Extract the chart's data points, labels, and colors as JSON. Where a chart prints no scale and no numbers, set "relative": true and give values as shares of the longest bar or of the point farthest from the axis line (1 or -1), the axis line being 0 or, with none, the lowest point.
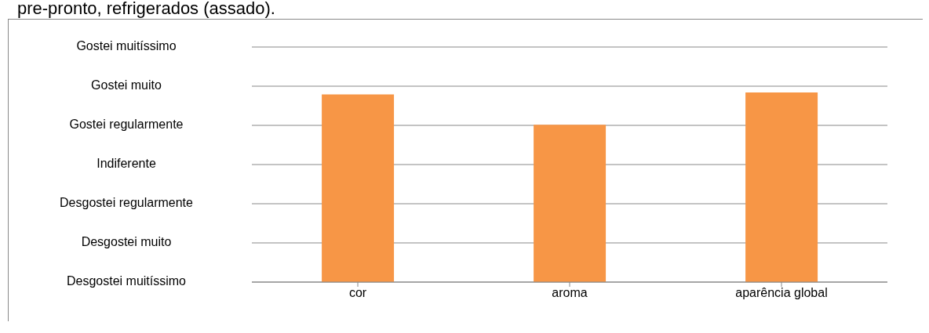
{
  "chart_data": {
    "type": "bar",
    "title": "pre-pronto, refrigerados (assado).",
    "categories": [
      "cor",
      "aroma",
      "aparência global"
    ],
    "values": [
      0.99,
      0.83,
      1
    ],
    "color": "#f79646",
    "relative": true,
    "annotations": [
      "Desgostei muitíssimo",
      "Desgostei muito",
      "Desgostei regularmente",
      "Indiferente",
      "Gostei regularmente",
      "Gostei muito",
      "Gostei muitíssimo"
    ],
    "grid": "y",
    "legend": false
  }
}
